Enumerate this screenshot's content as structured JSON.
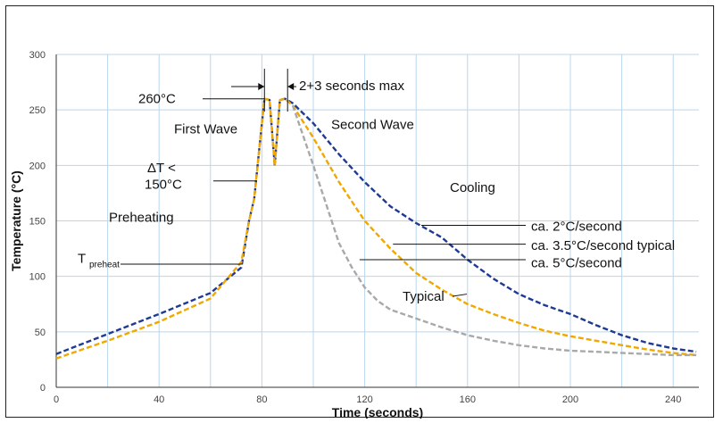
{
  "chart_data": {
    "type": "line",
    "title": "",
    "xlabel": "Time (seconds)",
    "ylabel": "Temperature (°C)",
    "xlim": [
      0,
      250
    ],
    "ylim": [
      0,
      300
    ],
    "xticks": [
      0,
      40,
      80,
      120,
      160,
      200,
      240
    ],
    "yticks": [
      0,
      50,
      100,
      150,
      200,
      250,
      300
    ],
    "grid": true,
    "series": [
      {
        "color": "#1f3a93",
        "style": "dashed",
        "points": [
          [
            0,
            30
          ],
          [
            20,
            48
          ],
          [
            40,
            66
          ],
          [
            60,
            85
          ],
          [
            72,
            108
          ],
          [
            75,
            150
          ],
          [
            77,
            170
          ],
          [
            79,
            215
          ],
          [
            81,
            260
          ],
          [
            83,
            259
          ],
          [
            85,
            200
          ],
          [
            87,
            259
          ],
          [
            89,
            260
          ],
          [
            92,
            256
          ],
          [
            100,
            238
          ],
          [
            110,
            210
          ],
          [
            120,
            185
          ],
          [
            130,
            163
          ],
          [
            140,
            148
          ],
          [
            150,
            135
          ],
          [
            160,
            115
          ],
          [
            170,
            98
          ],
          [
            180,
            84
          ],
          [
            190,
            74
          ],
          [
            200,
            66
          ],
          [
            210,
            56
          ],
          [
            220,
            47
          ],
          [
            230,
            40
          ],
          [
            240,
            35
          ],
          [
            249,
            32
          ]
        ]
      },
      {
        "color": "#f0a800",
        "style": "dashed",
        "points": [
          [
            0,
            26
          ],
          [
            20,
            42
          ],
          [
            40,
            59
          ],
          [
            60,
            80
          ],
          [
            72,
            113
          ],
          [
            75,
            150
          ],
          [
            77,
            170
          ],
          [
            79,
            215
          ],
          [
            81,
            260
          ],
          [
            83,
            259
          ],
          [
            85,
            200
          ],
          [
            87,
            259
          ],
          [
            89,
            260
          ],
          [
            92,
            254
          ],
          [
            100,
            225
          ],
          [
            110,
            185
          ],
          [
            120,
            150
          ],
          [
            130,
            125
          ],
          [
            140,
            103
          ],
          [
            150,
            88
          ],
          [
            160,
            75
          ],
          [
            170,
            66
          ],
          [
            180,
            58
          ],
          [
            190,
            51
          ],
          [
            200,
            46
          ],
          [
            210,
            42
          ],
          [
            220,
            38
          ],
          [
            230,
            34
          ],
          [
            240,
            31
          ],
          [
            249,
            29
          ]
        ]
      },
      {
        "color": "#a9a9a9",
        "style": "dashed",
        "points": [
          [
            92,
            254
          ],
          [
            100,
            200
          ],
          [
            105,
            165
          ],
          [
            110,
            130
          ],
          [
            115,
            108
          ],
          [
            120,
            90
          ],
          [
            125,
            78
          ],
          [
            130,
            70
          ],
          [
            140,
            62
          ],
          [
            150,
            54
          ],
          [
            160,
            47
          ],
          [
            170,
            42
          ],
          [
            180,
            38
          ],
          [
            190,
            35
          ],
          [
            200,
            33
          ],
          [
            210,
            32
          ],
          [
            220,
            31
          ],
          [
            230,
            30
          ],
          [
            240,
            29
          ],
          [
            249,
            29
          ]
        ]
      }
    ]
  },
  "annotations": {
    "peak_temp": "260°C",
    "first_wave": "First Wave",
    "second_wave": "Second Wave",
    "delta_t": "ΔT <",
    "delta_t_value": "150°C",
    "preheating": "Preheating",
    "t_preheat_main": "T",
    "t_preheat_sub": "preheat",
    "max_time": "2+3 seconds max",
    "cooling": "Cooling",
    "rate_2": "ca. 2°C/second",
    "rate_3_5": "ca. 3.5°C/second typical",
    "rate_5": "ca. 5°C/second",
    "typical": "Typical"
  }
}
